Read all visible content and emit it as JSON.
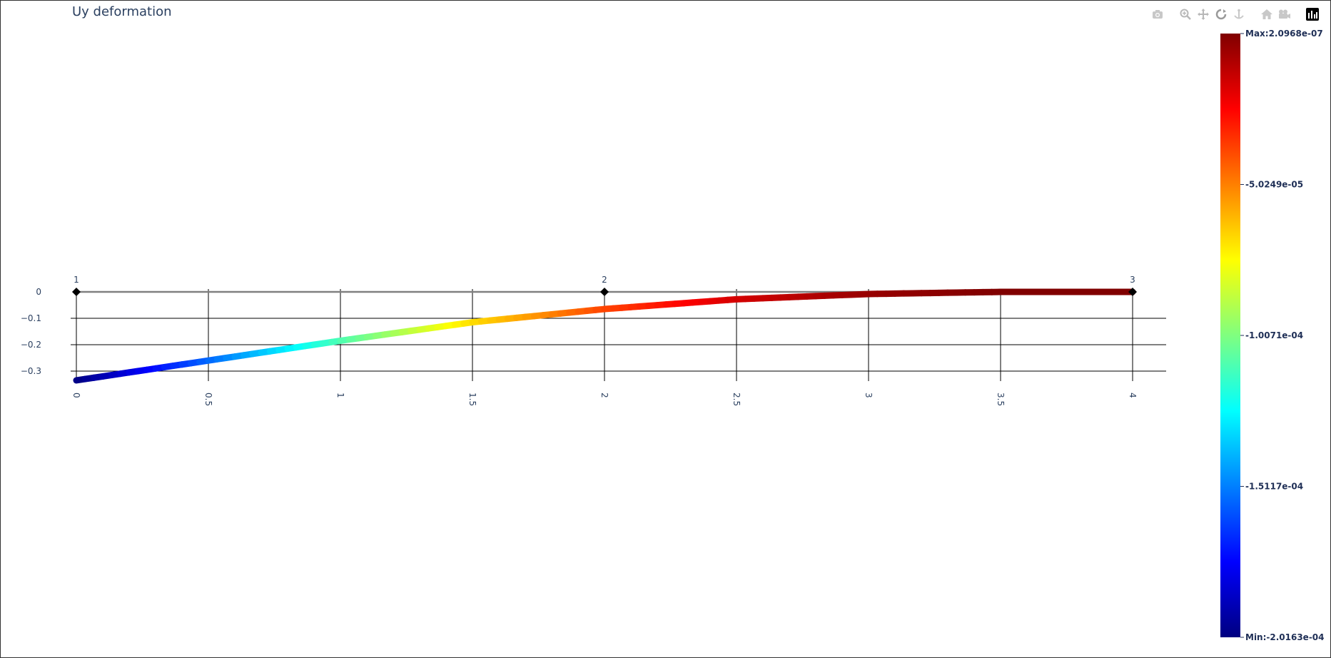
{
  "title": "Uy deformation",
  "modebar": {
    "buttons": [
      {
        "name": "camera-icon",
        "group": 0
      },
      {
        "name": "zoom-icon",
        "group": 1
      },
      {
        "name": "pan-icon",
        "group": 1
      },
      {
        "name": "orbit-icon",
        "group": 1
      },
      {
        "name": "turntable-icon",
        "group": 1
      },
      {
        "name": "home-icon",
        "group": 2
      },
      {
        "name": "reset-camera-icon",
        "group": 2
      },
      {
        "name": "plotly-logo-icon",
        "group": 3
      }
    ]
  },
  "colors": {
    "text": "#2a3f5f",
    "colorbar_text": "#1f2f56",
    "grid": "#000000",
    "beam": "#808080",
    "node": "#000000",
    "colorscale": [
      "#000080",
      "#0000ff",
      "#00ffff",
      "#ffff00",
      "#ff0000",
      "#800000"
    ]
  },
  "chart_data": {
    "type": "line",
    "title": "Uy deformation",
    "xlim": [
      0,
      4
    ],
    "ylim": [
      -0.33,
      0
    ],
    "x_ticks": [
      "0",
      "0.5",
      "1",
      "1.5",
      "2",
      "2.5",
      "3",
      "3.5",
      "4"
    ],
    "x_tick_values": [
      0,
      0.5,
      1,
      1.5,
      2,
      2.5,
      3,
      3.5,
      4
    ],
    "y_ticks": [
      "0",
      "−0.1",
      "−0.2",
      "−0.3"
    ],
    "y_tick_values": [
      0,
      -0.1,
      -0.2,
      -0.3
    ],
    "undeformed": {
      "x": [
        0,
        4
      ],
      "y": [
        0,
        0
      ]
    },
    "nodes": [
      {
        "label": "1",
        "x": 0,
        "y": 0
      },
      {
        "label": "2",
        "x": 2,
        "y": 0
      },
      {
        "label": "3",
        "x": 4,
        "y": 0
      }
    ],
    "deformed": {
      "x": [
        0,
        0.5,
        1,
        1.5,
        2,
        2.5,
        3,
        3.5,
        4
      ],
      "y": [
        -0.335,
        -0.26,
        -0.185,
        -0.115,
        -0.065,
        -0.028,
        -0.008,
        0.0,
        0.0
      ]
    },
    "colorbar": {
      "min": -0.00020163,
      "max": 2.0968e-07,
      "labels": [
        {
          "value": 2.0968e-07,
          "text": "Max:2.0968e-07"
        },
        {
          "value": -5.0249e-05,
          "text": "-5.0249e-05"
        },
        {
          "value": -0.00010071,
          "text": "-1.0071e-04"
        },
        {
          "value": -0.00015117,
          "text": "-1.5117e-04"
        },
        {
          "value": -0.00020163,
          "text": "Min:-2.0163e-04"
        }
      ]
    }
  }
}
